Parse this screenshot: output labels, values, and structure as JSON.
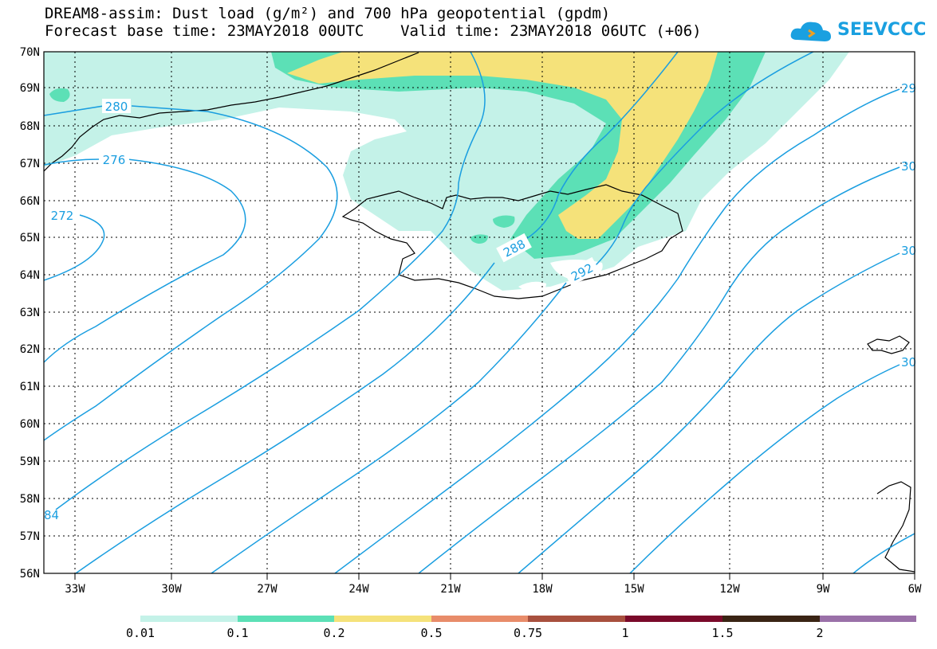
{
  "title_line1": "DREAM8-assim: Dust load (g/m²) and 700 hPa geopotential (gpdm)",
  "title_line2": "Forecast base time: 23MAY2018 00UTC    Valid time: 23MAY2018 06UTC (+06)",
  "logo_text": "SEEVCCC",
  "lat_labels": [
    "70N",
    "69N",
    "68N",
    "67N",
    "66N",
    "65N",
    "64N",
    "63N",
    "62N",
    "61N",
    "60N",
    "59N",
    "58N",
    "57N",
    "56N"
  ],
  "lon_labels": [
    "33W",
    "30W",
    "27W",
    "24W",
    "21W",
    "18W",
    "15W",
    "12W",
    "9W",
    "6W"
  ],
  "contour_labels": [
    "280",
    "276",
    "272",
    "288",
    "292",
    "29",
    "30",
    "30",
    "30",
    "84"
  ],
  "colorbar": {
    "labels": [
      "0.01",
      "0.1",
      "0.2",
      "0.5",
      "0.75",
      "1",
      "1.5",
      "2"
    ],
    "colors": [
      "#c4f2e8",
      "#5ce0b6",
      "#f5e27a",
      "#e88c6a",
      "#a8503e",
      "#7a0a2a",
      "#3a2414",
      "#9a70a8"
    ]
  },
  "colors": {
    "contour": "#1a9ee0",
    "dust_low": "#c4f2e8",
    "dust_mid": "#5ce0b6",
    "dust_high": "#f5e27a",
    "coast": "#000000"
  }
}
